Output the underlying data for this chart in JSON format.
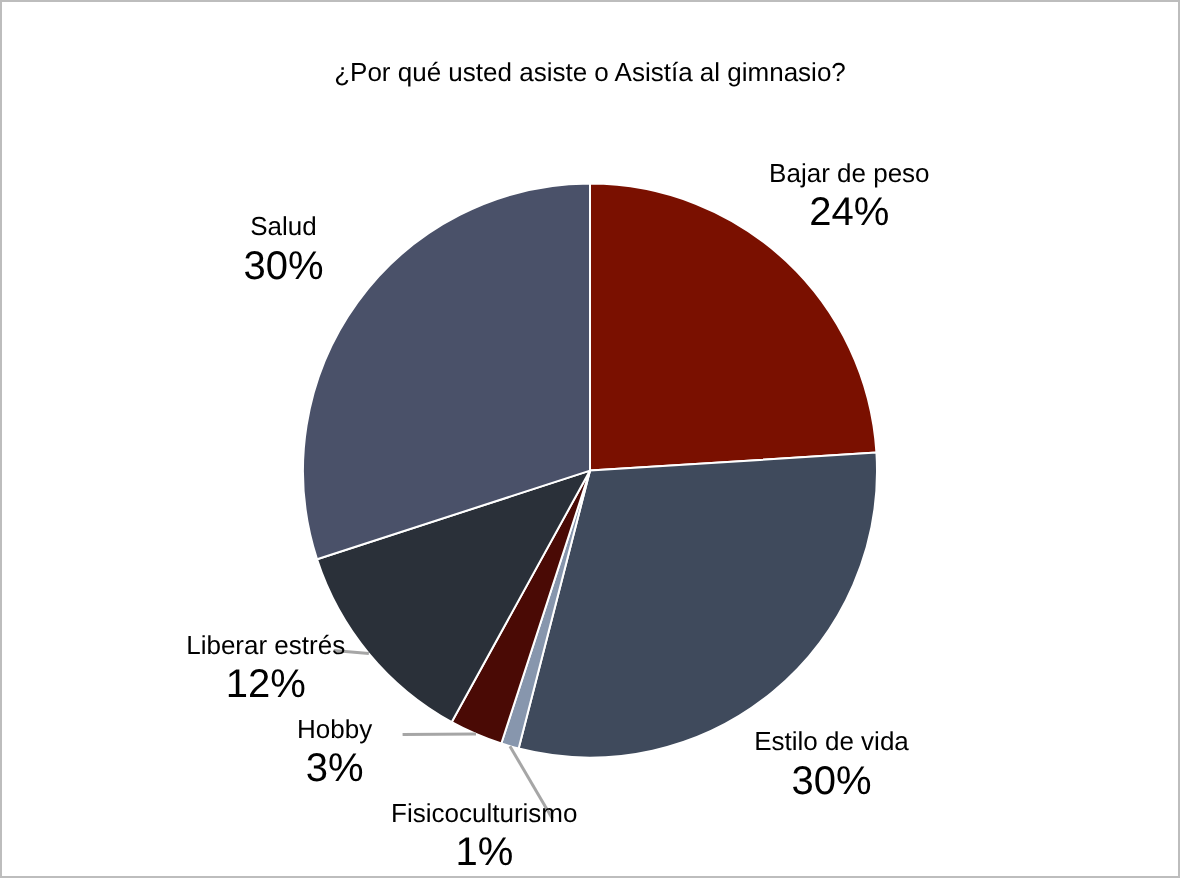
{
  "chart_data": {
    "type": "pie",
    "title": "¿Por qué usted asiste o Asistía al gimnasio?",
    "categories": [
      "Bajar de peso",
      "Estilo de vida",
      "Fisicoculturismo",
      "Hobby",
      "Liberar estrés",
      "Salud"
    ],
    "values": [
      24,
      30,
      1,
      3,
      12,
      30
    ],
    "value_labels": [
      "24%",
      "30%",
      "1%",
      "3%",
      "12%",
      "30%"
    ],
    "colors": [
      "#7a1000",
      "#3f4a5c",
      "#8796ad",
      "#4a0a05",
      "#2a3039",
      "#4a5169"
    ],
    "legend": false
  }
}
